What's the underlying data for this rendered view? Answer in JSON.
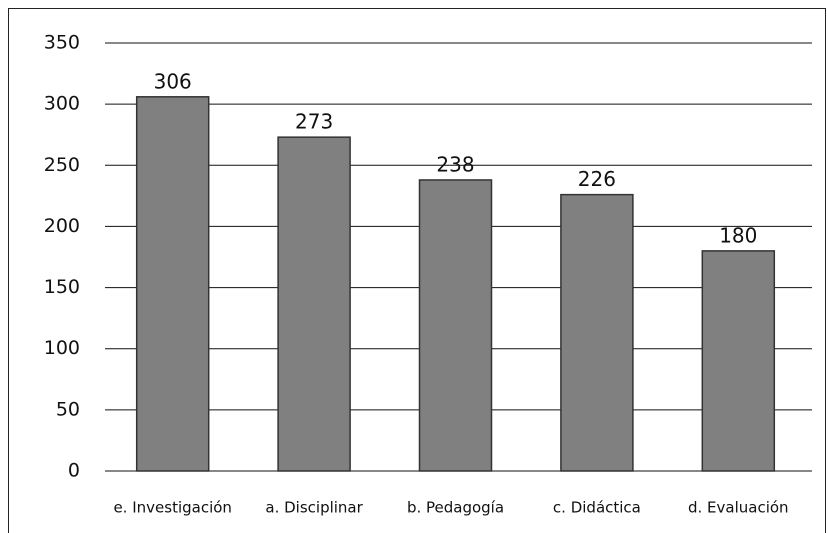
{
  "chart_data": {
    "type": "bar",
    "categories": [
      "e. Investigación",
      "a. Disciplinar",
      "b. Pedagogía",
      "c. Didáctica",
      "d. Evaluación"
    ],
    "values": [
      306,
      273,
      238,
      226,
      180
    ],
    "color": "#808080",
    "ylim": [
      0,
      350
    ],
    "yticks": [
      0,
      50,
      100,
      150,
      200,
      250,
      300,
      350
    ],
    "grid": true
  }
}
